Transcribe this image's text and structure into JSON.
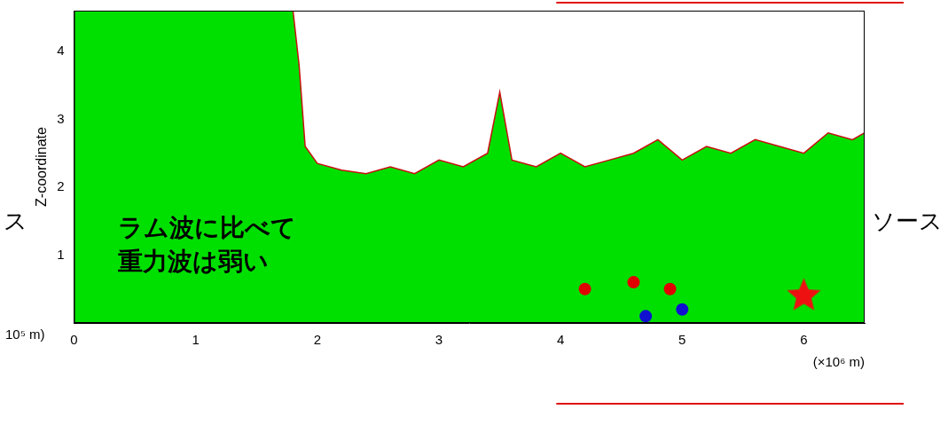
{
  "chart_data": {
    "type": "area",
    "y_label": "Z-coordinate",
    "x_label": "(×10⁶ m)",
    "xlim": [
      0,
      6.5
    ],
    "xticks": [
      0,
      1,
      2,
      3,
      4,
      5,
      6
    ],
    "ylim": [
      0,
      4.6
    ],
    "yticks": [
      1,
      2,
      3,
      4
    ],
    "grid": false,
    "series": [
      {
        "type": "area",
        "color": "#00e000",
        "x": [
          0,
          1.8,
          1.85,
          1.9,
          2.0,
          2.2,
          2.4,
          2.6,
          2.8,
          3.0,
          3.2,
          3.4,
          3.5,
          3.6,
          3.8,
          4.0,
          4.2,
          4.4,
          4.6,
          4.8,
          5.0,
          5.2,
          5.4,
          5.6,
          5.8,
          6.0,
          6.2,
          6.4,
          6.5
        ],
        "values": [
          4.6,
          4.6,
          3.8,
          2.6,
          2.35,
          2.25,
          2.2,
          2.3,
          2.2,
          2.4,
          2.3,
          2.5,
          3.4,
          2.4,
          2.3,
          2.5,
          2.3,
          2.4,
          2.5,
          2.7,
          2.4,
          2.6,
          2.5,
          2.7,
          2.6,
          2.5,
          2.8,
          2.7,
          2.8
        ]
      },
      {
        "type": "scatter",
        "marker": "circle",
        "colors": [
          "#e00000",
          "#e00000",
          "#1010d0",
          "#e00000",
          "#1010d0"
        ],
        "x": [
          4.2,
          4.6,
          4.7,
          4.9,
          5.0
        ],
        "values": [
          0.5,
          0.6,
          0.1,
          0.5,
          0.2
        ]
      },
      {
        "type": "scatter",
        "marker": "star",
        "color": "#ee1111",
        "x": [
          6.0
        ],
        "values": [
          0.4
        ]
      }
    ],
    "annotations": [
      {
        "text": [
          "ラム波に比べて",
          "重力波は弱い"
        ]
      },
      {
        "text": [
          "ソース"
        ]
      },
      {
        "text": [
          "ス"
        ]
      },
      {
        "text": [
          "10⁵ m)"
        ]
      }
    ]
  }
}
